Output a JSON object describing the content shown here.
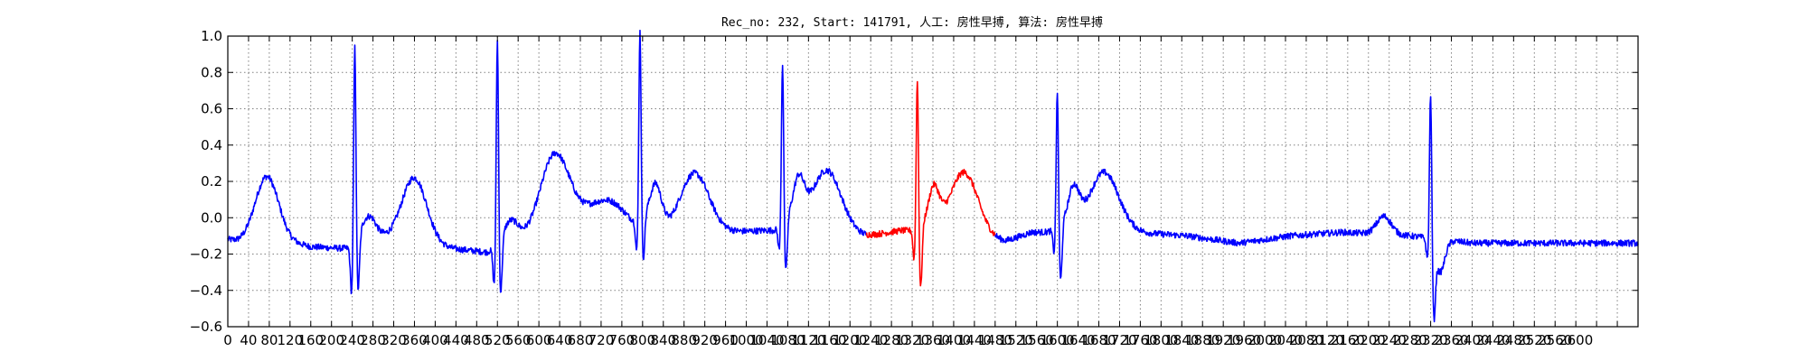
{
  "chart_data": {
    "type": "line",
    "title": "Rec_no: 232, Start: 141791, 人工: 房性早搏, 算法: 房性早搏",
    "xlabel": "",
    "ylabel": "",
    "xlim": [
      0,
      2720
    ],
    "ylim": [
      -0.6,
      1.0
    ],
    "grid": true,
    "grid_style": "dotted",
    "y_ticks": [
      -0.6,
      -0.4,
      -0.2,
      0.0,
      0.2,
      0.4,
      0.6,
      0.8,
      1.0
    ],
    "y_tick_labels": [
      "−0.6",
      "−0.4",
      "−0.2",
      "0.0",
      "0.2",
      "0.4",
      "0.6",
      "0.8",
      "1.0"
    ],
    "x_tick_step": 40,
    "x_tick_max": 2720,
    "x_label_max": 2600,
    "signal_length": 2720,
    "colors": {
      "normal": "#0000ff",
      "highlight": "#ff0000",
      "axes": "#000000",
      "grid": "#808080"
    },
    "highlight_range": [
      1232,
      1480
    ],
    "beats": [
      {
        "r": 245,
        "amp": 1.12,
        "q": -0.28,
        "s": -0.32,
        "p": -1,
        "t": 0.12
      },
      {
        "r": 520,
        "amp": 1.17,
        "q": -0.22,
        "s": -0.32,
        "p": -1,
        "t": 0.12
      },
      {
        "r": 795,
        "amp": 1.07,
        "q": -0.18,
        "s": -0.26,
        "p": 0.95,
        "t": 0.34
      },
      {
        "r": 1070,
        "amp": 0.92,
        "q": -0.14,
        "s": -0.32,
        "p": 0.95,
        "t": 0.35
      },
      {
        "r": 1330,
        "amp": 0.85,
        "q": -0.18,
        "s": -0.38,
        "p": 0.9,
        "t": 0.33
      },
      {
        "r": 1600,
        "amp": 0.77,
        "q": -0.14,
        "s": -0.34,
        "p": 0.9,
        "t": 0.31
      },
      {
        "r": 2320,
        "amp": 0.87,
        "q": -0.12,
        "s": -0.38,
        "p": 0.95,
        "t": 0.0
      }
    ],
    "waves": [
      {
        "center": 75,
        "width": 22,
        "amp": 0.35
      },
      {
        "center": 360,
        "width": 24,
        "amp": 0.36
      },
      {
        "center": 630,
        "width": 27,
        "amp": 0.42
      },
      {
        "center": 710,
        "width": 38,
        "amp": 0.12
      },
      {
        "center": 750,
        "width": 30,
        "amp": 0.1
      },
      {
        "center": 900,
        "width": 28,
        "amp": 0.33
      },
      {
        "center": 1155,
        "width": 28,
        "amp": 0.35
      },
      {
        "center": 1420,
        "width": 27,
        "amp": 0.36
      },
      {
        "center": 1690,
        "width": 28,
        "amp": 0.33
      },
      {
        "center": 2230,
        "width": 14,
        "amp": 0.1
      }
    ],
    "baseline": [
      [
        0,
        -0.12
      ],
      [
        20,
        -0.13
      ],
      [
        100,
        -0.12
      ],
      [
        160,
        -0.16
      ],
      [
        230,
        -0.17
      ],
      [
        280,
        -0.1
      ],
      [
        400,
        -0.16
      ],
      [
        500,
        -0.19
      ],
      [
        560,
        -0.12
      ],
      [
        660,
        -0.06
      ],
      [
        760,
        -0.1
      ],
      [
        1040,
        -0.07
      ],
      [
        1100,
        -0.08
      ],
      [
        1230,
        -0.1
      ],
      [
        1300,
        -0.07
      ],
      [
        1380,
        -0.1
      ],
      [
        1500,
        -0.13
      ],
      [
        1550,
        -0.08
      ],
      [
        1750,
        -0.08
      ],
      [
        1850,
        -0.1
      ],
      [
        1950,
        -0.14
      ],
      [
        2050,
        -0.1
      ],
      [
        2150,
        -0.08
      ],
      [
        2280,
        -0.1
      ],
      [
        2400,
        -0.14
      ]
    ]
  }
}
